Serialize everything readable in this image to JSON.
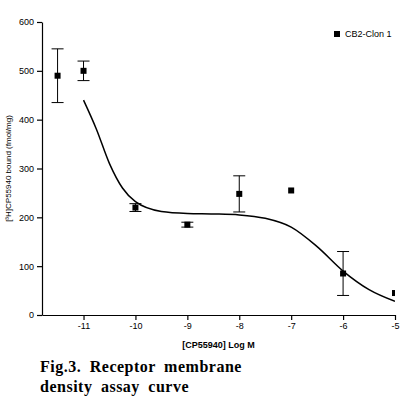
{
  "chart_data": {
    "type": "scatter",
    "title": "Fig.3. Receptor membrane density assay curve",
    "x_label": "[CP55940] Log M",
    "y_label": "[³H]CP55940 bound (fmol/mg)",
    "xlim": [
      -11.8,
      -5
    ],
    "xticks": [
      -11,
      -10,
      -9,
      -8,
      -7,
      -6,
      -5
    ],
    "ylim": [
      0,
      600
    ],
    "yticks": [
      0,
      100,
      200,
      300,
      400,
      500,
      600
    ],
    "grid": false,
    "legend": "top-right",
    "series": [
      {
        "name": "CB2-Clon 1",
        "color": "#000000",
        "marker": "square",
        "x": [
          -11.5,
          -11,
          -10,
          -9,
          -8,
          -7,
          -6,
          -5
        ],
        "values": [
          490,
          500,
          220,
          185,
          248,
          255,
          85,
          45
        ],
        "errors": [
          55,
          20,
          8,
          5,
          37,
          null,
          45,
          null
        ]
      },
      {
        "type": "line",
        "color": "#000000",
        "line_style": "solid",
        "x": [
          -11,
          -10.75,
          -10.5,
          -10.25,
          -10,
          -9.5,
          -9,
          -8.5,
          -8,
          -7.5,
          -7,
          -6.5,
          -6,
          -5.5,
          -5
        ],
        "values": [
          440,
          380,
          310,
          260,
          232,
          212,
          208,
          207,
          205,
          198,
          180,
          140,
          90,
          52,
          28
        ]
      }
    ]
  }
}
